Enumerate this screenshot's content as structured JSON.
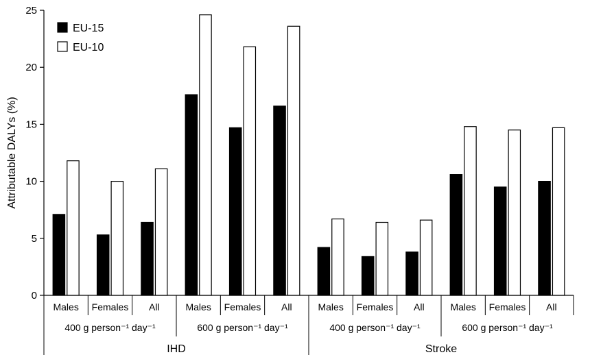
{
  "chart_data": {
    "type": "bar",
    "ylabel": "Attributable DALYs (%)",
    "ylim": [
      0,
      25
    ],
    "yticks": [
      0,
      5,
      10,
      15,
      20,
      25
    ],
    "grid": false,
    "legend_position": "top-left",
    "categories": [
      {
        "outcome": "IHD",
        "intake": "400 g person⁻¹ day⁻¹",
        "sex": "Males"
      },
      {
        "outcome": "IHD",
        "intake": "400 g person⁻¹ day⁻¹",
        "sex": "Females"
      },
      {
        "outcome": "IHD",
        "intake": "400 g person⁻¹ day⁻¹",
        "sex": "All"
      },
      {
        "outcome": "IHD",
        "intake": "600 g person⁻¹ day⁻¹",
        "sex": "Males"
      },
      {
        "outcome": "IHD",
        "intake": "600 g person⁻¹ day⁻¹",
        "sex": "Females"
      },
      {
        "outcome": "IHD",
        "intake": "600 g person⁻¹ day⁻¹",
        "sex": "All"
      },
      {
        "outcome": "Stroke",
        "intake": "400 g person⁻¹ day⁻¹",
        "sex": "Males"
      },
      {
        "outcome": "Stroke",
        "intake": "400 g person⁻¹ day⁻¹",
        "sex": "Females"
      },
      {
        "outcome": "Stroke",
        "intake": "400 g person⁻¹ day⁻¹",
        "sex": "All"
      },
      {
        "outcome": "Stroke",
        "intake": "600 g person⁻¹ day⁻¹",
        "sex": "Males"
      },
      {
        "outcome": "Stroke",
        "intake": "600 g person⁻¹ day⁻¹",
        "sex": "Females"
      },
      {
        "outcome": "Stroke",
        "intake": "600 g person⁻¹ day⁻¹",
        "sex": "All"
      }
    ],
    "series": [
      {
        "name": "EU-15",
        "color": "#000000",
        "values": [
          7.1,
          5.3,
          6.4,
          17.6,
          14.7,
          16.6,
          4.2,
          3.4,
          3.8,
          10.6,
          9.5,
          10.0
        ]
      },
      {
        "name": "EU-10",
        "color": "#ffffff",
        "values": [
          11.8,
          10.0,
          11.1,
          24.6,
          21.8,
          23.6,
          6.7,
          6.4,
          6.6,
          14.8,
          14.5,
          14.7
        ]
      }
    ]
  }
}
